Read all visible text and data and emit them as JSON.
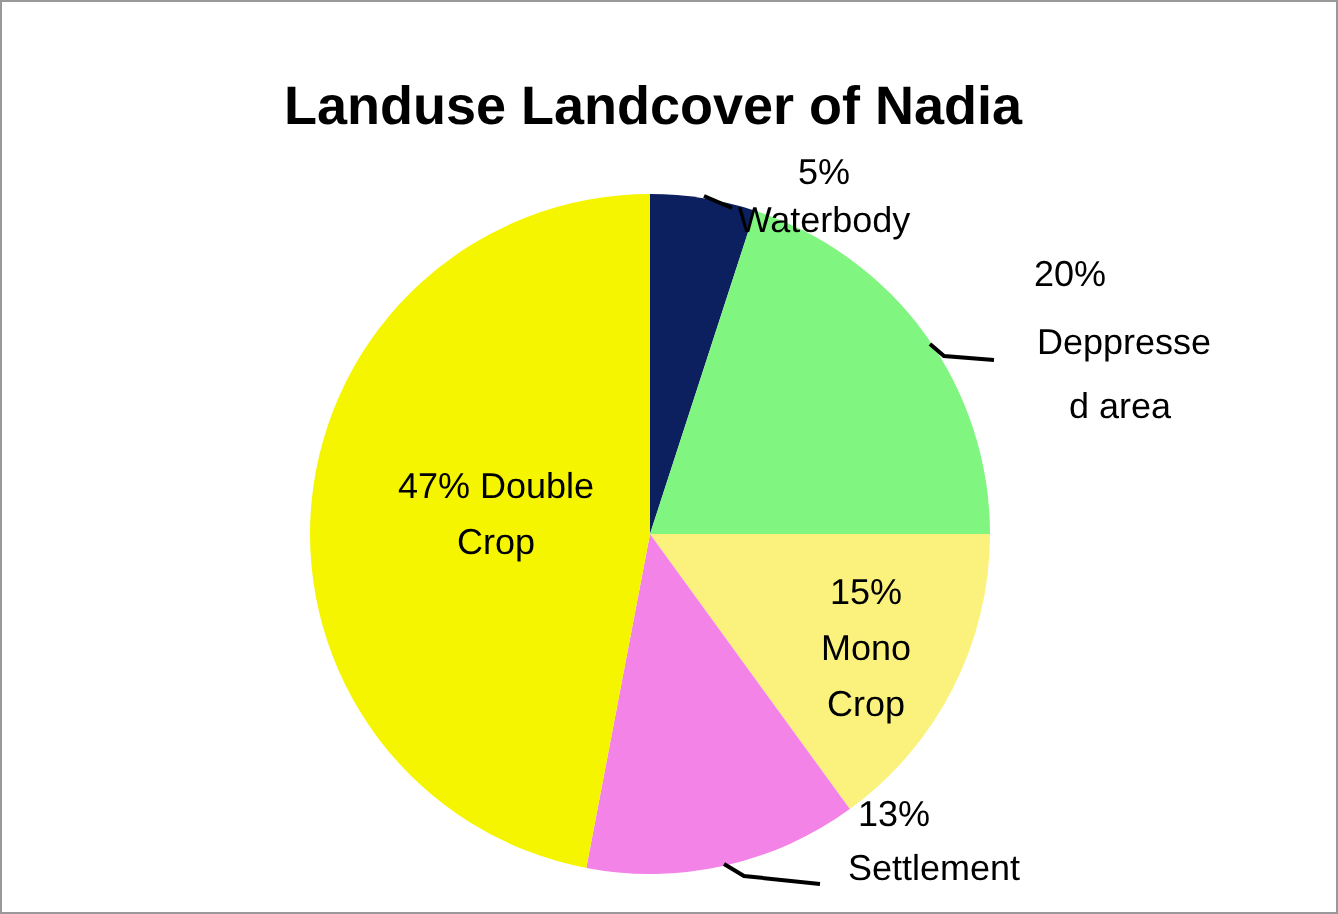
{
  "chart_data": {
    "type": "pie",
    "title": "Landuse Landcover of Nadia",
    "categories": [
      "Waterbody",
      "Deppressed area",
      "Mono Crop",
      "Settlement",
      "Double Crop"
    ],
    "values": [
      5,
      20,
      15,
      13,
      47
    ],
    "value_labels": [
      "5%",
      "20%",
      "15%",
      "13%",
      "47%"
    ],
    "colors": [
      "#0c1f5e",
      "#80f580",
      "#faf27c",
      "#f383e6",
      "#f5f500"
    ]
  }
}
